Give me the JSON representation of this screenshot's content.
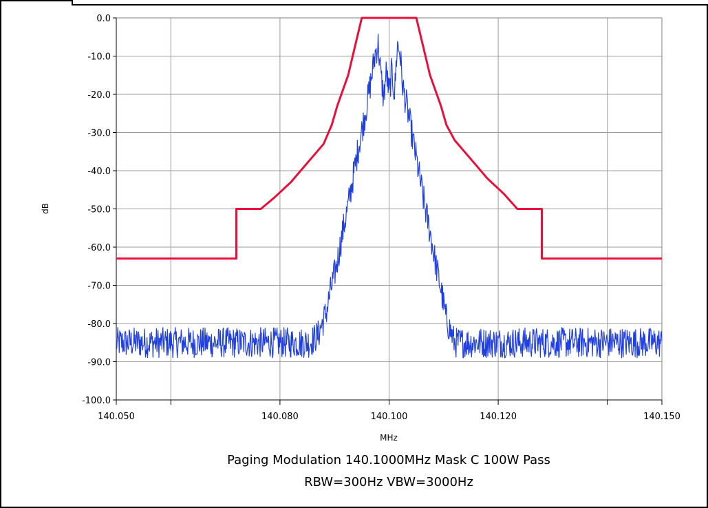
{
  "chart_data": {
    "type": "line",
    "xlabel": "MHz",
    "ylabel": "dB",
    "xlim": [
      140.05,
      140.15
    ],
    "ylim": [
      -100,
      0
    ],
    "grid": true,
    "x_ticks": [
      140.05,
      140.06,
      140.08,
      140.1,
      140.12,
      140.14,
      140.15
    ],
    "x_tick_labels": [
      "140.050",
      "",
      "140.080",
      "140.100",
      "140.120",
      "",
      "140.150"
    ],
    "y_ticks": [
      0,
      -10,
      -20,
      -30,
      -40,
      -50,
      -60,
      -70,
      -80,
      -90,
      -100
    ],
    "y_tick_labels": [
      "0.0",
      "-10.0",
      "-20.0",
      "-30.0",
      "-40.0",
      "-50.0",
      "-60.0",
      "-70.0",
      "-80.0",
      "-90.0",
      "-100.0"
    ],
    "captions": [
      "Paging Modulation  140.1000MHz  Mask C  100W Pass",
      "RBW=300Hz VBW=3000Hz"
    ],
    "series": [
      {
        "role": "mask",
        "color": "#e8103a",
        "x": [
          140.05,
          140.072,
          140.072,
          140.0765,
          140.079,
          140.082,
          140.085,
          140.088,
          140.0895,
          140.0905,
          140.0925,
          140.095,
          140.105,
          140.1075,
          140.1095,
          140.1105,
          140.112,
          140.115,
          140.118,
          140.121,
          140.1235,
          140.128,
          140.128,
          140.15
        ],
        "values": [
          -63,
          -63,
          -50,
          -50,
          -47,
          -43,
          -38,
          -33,
          -28,
          -23,
          -15,
          0,
          0,
          -15,
          -23,
          -28,
          -32,
          -37,
          -42,
          -46,
          -50,
          -50,
          -63,
          -63
        ]
      },
      {
        "role": "spectrum",
        "color": "#1f3fe0",
        "x": [
          140.05,
          140.0855,
          140.087,
          140.0885,
          140.0895,
          140.0905,
          140.0915,
          140.0925,
          140.0935,
          140.0945,
          140.0955,
          140.0965,
          140.0975,
          140.098,
          140.0985,
          140.099,
          140.0995,
          140.1,
          140.1005,
          140.101,
          140.1015,
          140.102,
          140.1025,
          140.1035,
          140.1045,
          140.1055,
          140.1065,
          140.1075,
          140.1085,
          140.1095,
          140.1105,
          140.112,
          140.1135,
          140.15
        ],
        "values": [
          -85,
          -85,
          -83,
          -77,
          -70,
          -64,
          -56,
          -49,
          -41,
          -33,
          -26,
          -18,
          -9,
          -7,
          -15,
          -21,
          -14,
          -20,
          -14,
          -20,
          -7,
          -9,
          -18,
          -25,
          -33,
          -41,
          -49,
          -56,
          -64,
          -71,
          -79,
          -85,
          -85,
          -85
        ],
        "noise_amplitude": 4
      }
    ]
  }
}
